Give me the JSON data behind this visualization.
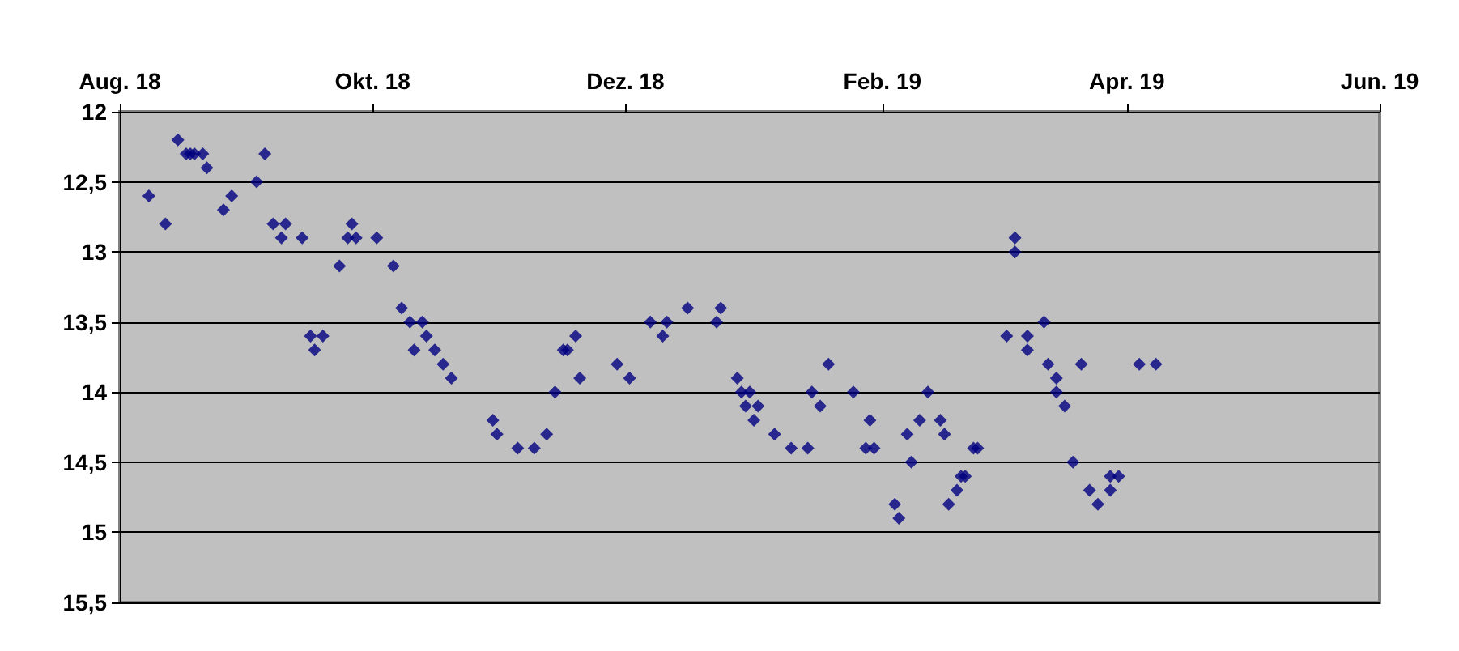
{
  "chart_data": {
    "type": "scatter",
    "marker": "diamond",
    "grid": "y",
    "xlim": [
      "2018-08-01",
      "2019-06-01"
    ],
    "xticks": [
      {
        "value": "2018-08-01",
        "label": "Aug. 18"
      },
      {
        "value": "2018-10-01",
        "label": "Okt. 18"
      },
      {
        "value": "2018-12-01",
        "label": "Dez. 18"
      },
      {
        "value": "2019-02-01",
        "label": "Feb. 19"
      },
      {
        "value": "2019-04-01",
        "label": "Apr. 19"
      },
      {
        "value": "2019-06-01",
        "label": "Jun. 19"
      }
    ],
    "ylim": [
      15.5,
      12
    ],
    "yticks": [
      12,
      {
        "value": 12.5,
        "label": "12,5"
      },
      13,
      {
        "value": 13.5,
        "label": "13,5"
      },
      14,
      {
        "value": 14.5,
        "label": "14,5"
      },
      15,
      {
        "value": 15.5,
        "label": "15,5"
      }
    ],
    "series": [
      {
        "color": "#000080",
        "x": [
          "2018-08-08",
          "2018-08-12",
          "2018-08-15",
          "2018-08-17",
          "2018-08-18",
          "2018-08-19",
          "2018-08-21",
          "2018-08-22",
          "2018-08-26",
          "2018-08-28",
          "2018-09-03",
          "2018-09-05",
          "2018-09-07",
          "2018-09-09",
          "2018-09-10",
          "2018-09-14",
          "2018-09-16",
          "2018-09-19",
          "2018-09-17",
          "2018-09-23",
          "2018-09-25",
          "2018-09-26",
          "2018-09-27",
          "2018-10-02",
          "2018-10-06",
          "2018-10-08",
          "2018-10-10",
          "2018-10-11",
          "2018-10-13",
          "2018-10-14",
          "2018-10-16",
          "2018-10-18",
          "2018-10-20",
          "2018-10-30",
          "2018-10-31",
          "2018-11-05",
          "2018-11-09",
          "2018-11-12",
          "2018-11-14",
          "2018-11-16",
          "2018-11-17",
          "2018-11-19",
          "2018-11-20",
          "2018-11-29",
          "2018-12-02",
          "2018-12-07",
          "2018-12-10",
          "2018-12-11",
          "2018-12-16",
          "2018-12-23",
          "2018-12-24",
          "2018-12-28",
          "2018-12-29",
          "2018-12-30",
          "2018-12-31",
          "2019-01-01",
          "2019-01-02",
          "2019-01-06",
          "2019-01-10",
          "2019-01-14",
          "2019-01-15",
          "2019-01-17",
          "2019-01-19",
          "2019-01-25",
          "2019-01-28",
          "2019-01-30",
          "2019-01-29",
          "2019-02-04",
          "2019-02-05",
          "2019-02-07",
          "2019-02-08",
          "2019-02-10",
          "2019-02-12",
          "2019-02-15",
          "2019-02-16",
          "2019-02-17",
          "2019-02-19",
          "2019-02-20",
          "2019-02-21",
          "2019-02-23",
          "2019-02-24",
          "2019-03-05",
          "2019-03-05",
          "2019-03-03",
          "2019-03-08",
          "2019-03-08",
          "2019-03-12",
          "2019-03-13",
          "2019-03-15",
          "2019-03-15",
          "2019-03-17",
          "2019-03-19",
          "2019-03-21",
          "2019-03-23",
          "2019-03-25",
          "2019-03-28",
          "2019-03-28",
          "2019-03-30",
          "2019-04-04",
          "2019-04-08"
        ],
        "values": [
          12.6,
          12.8,
          12.2,
          12.3,
          12.3,
          12.3,
          12.3,
          12.4,
          12.7,
          12.6,
          12.5,
          12.3,
          12.8,
          12.9,
          12.8,
          12.9,
          13.6,
          13.6,
          13.7,
          13.1,
          12.9,
          12.8,
          12.9,
          12.9,
          13.1,
          13.4,
          13.5,
          13.7,
          13.5,
          13.6,
          13.7,
          13.8,
          13.9,
          14.2,
          14.3,
          14.4,
          14.4,
          14.3,
          14.0,
          13.7,
          13.7,
          13.6,
          13.9,
          13.8,
          13.9,
          13.5,
          13.6,
          13.5,
          13.4,
          13.5,
          13.4,
          13.9,
          14.0,
          14.1,
          14.0,
          14.2,
          14.1,
          14.3,
          14.4,
          14.4,
          14.0,
          14.1,
          13.8,
          14.0,
          14.4,
          14.4,
          14.2,
          14.8,
          14.9,
          14.3,
          14.5,
          14.2,
          14.0,
          14.2,
          14.3,
          14.8,
          14.7,
          14.6,
          14.6,
          14.4,
          14.4,
          12.9,
          13.0,
          13.6,
          13.6,
          13.7,
          13.5,
          13.8,
          13.9,
          14.0,
          14.1,
          14.5,
          13.8,
          14.7,
          14.8,
          14.7,
          14.6,
          14.6,
          13.8,
          13.8
        ]
      }
    ]
  }
}
